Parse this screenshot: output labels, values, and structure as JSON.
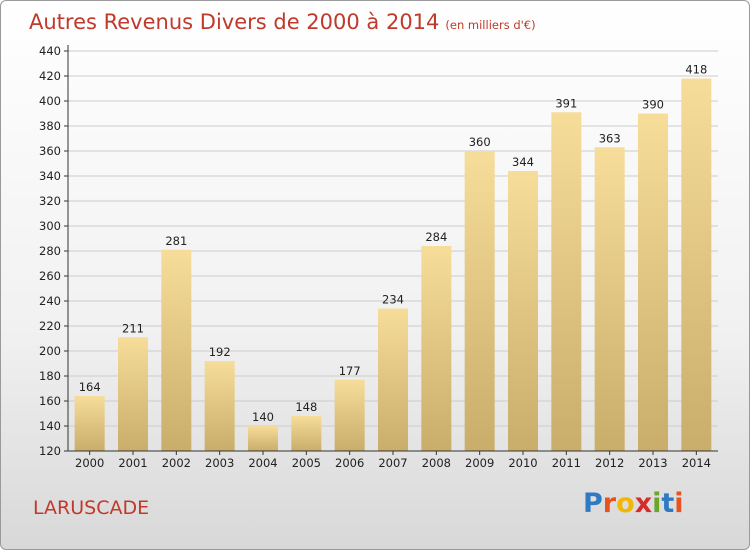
{
  "header": {
    "title": "Autres Revenus Divers de 2000 à 2014",
    "subtitle": "(en milliers d'€)"
  },
  "footer": {
    "commune": "LARUSCADE",
    "logo_letters": [
      "P",
      "r",
      "o",
      "x",
      "i",
      "t",
      "i"
    ],
    "logo_colors": [
      "#2e7bc4",
      "#e8521f",
      "#f2b705",
      "#d62b2b",
      "#6aa62b",
      "#2e7bc4",
      "#e8521f"
    ]
  },
  "chart_data": {
    "type": "bar",
    "categories": [
      "2000",
      "2001",
      "2002",
      "2003",
      "2004",
      "2005",
      "2006",
      "2007",
      "2008",
      "2009",
      "2010",
      "2011",
      "2012",
      "2013",
      "2014"
    ],
    "values": [
      164,
      211,
      281,
      192,
      140,
      148,
      177,
      234,
      284,
      360,
      344,
      391,
      363,
      390,
      418
    ],
    "value_labels": [
      "164",
      "211",
      "281",
      "192",
      "140",
      "148",
      "177",
      "234",
      "284",
      "360",
      "344",
      "391",
      "363",
      "390",
      "418"
    ],
    "title": "Autres Revenus Divers de 2000 à 2014",
    "ylim": [
      120,
      440
    ],
    "yticks": [
      120,
      140,
      160,
      180,
      200,
      220,
      240,
      260,
      280,
      300,
      320,
      340,
      360,
      380,
      400,
      420,
      440
    ],
    "grid": true,
    "colors": {
      "bar_light": "#f7dd9a",
      "bar_dark": "#c9ad6a",
      "grid": "#cccccc",
      "axis": "#333333"
    }
  }
}
